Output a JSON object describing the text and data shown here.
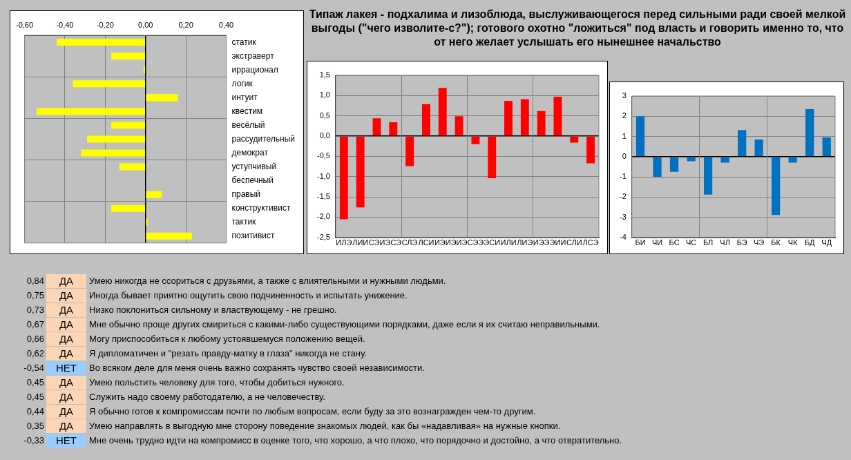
{
  "chart_data": [
    {
      "type": "bar",
      "orientation": "horizontal",
      "categories": [
        "статик",
        "экстраверт",
        "иррационал",
        "логик",
        "интуит",
        "квестим",
        "весёлый",
        "рассудительный",
        "демократ",
        "уступчивый",
        "беспечный",
        "правый",
        "конструктивист",
        "тактик",
        "позитивист"
      ],
      "values": [
        -0.44,
        -0.17,
        -0.01,
        -0.36,
        0.16,
        -0.54,
        -0.17,
        -0.29,
        -0.32,
        -0.13,
        0,
        0.08,
        -0.17,
        0.01,
        0.23
      ],
      "color": "#ffff00",
      "xlim": [
        -0.6,
        0.4
      ],
      "xticks": [
        {
          "value": -0.6,
          "label": "-0,60"
        },
        {
          "value": -0.4,
          "label": "-0,40"
        },
        {
          "value": -0.2,
          "label": "-0,20"
        },
        {
          "value": 0,
          "label": "0,00"
        },
        {
          "value": 0.2,
          "label": "0,20"
        },
        {
          "value": 0.4,
          "label": "0,40"
        }
      ],
      "grid": true,
      "legend": false
    },
    {
      "type": "bar",
      "title": "Типаж лакея - подхалима и лизоблюда, выслуживающегося перед сильными ради своей мелкой выгоды (\"чего изволите-с?\"); готового охотно \"ложиться\" под власть и говорить именно то, что от него желает услышать его нынешнее начальство",
      "categories": [
        "ИЛЭ",
        "ЛИИ",
        "СЭИ",
        "ЭСЭ",
        "СЛЭ",
        "ЛСИ",
        "ИЭИ",
        "ЭИЭ",
        "СЭЭ",
        "ЭСИ",
        "ИЛИ",
        "ЛИЭ",
        "ИЭЭ",
        "ЭИИ",
        "СЛИ",
        "ЛСЭ"
      ],
      "values": [
        -2.05,
        -1.76,
        0.44,
        0.34,
        -0.74,
        0.79,
        1.19,
        0.49,
        -0.2,
        -1.04,
        0.87,
        0.91,
        0.62,
        0.97,
        -0.16,
        -0.67
      ],
      "color": "#ff0000",
      "ylim": [
        -2.5,
        1.5
      ],
      "yticks": [
        {
          "value": -2.5,
          "label": "-2,5"
        },
        {
          "value": -2,
          "label": "-2,0"
        },
        {
          "value": -1.5,
          "label": "-1,5"
        },
        {
          "value": -1,
          "label": "-1,0"
        },
        {
          "value": -0.5,
          "label": "-0,5"
        },
        {
          "value": 0,
          "label": "0,0"
        },
        {
          "value": 0.5,
          "label": "0,5"
        },
        {
          "value": 1,
          "label": "1,0"
        },
        {
          "value": 1.5,
          "label": "1,5"
        }
      ],
      "grid": true,
      "legend": false
    },
    {
      "type": "bar",
      "categories": [
        "БИ",
        "ЧИ",
        "БС",
        "ЧС",
        "БЛ",
        "ЧЛ",
        "БЭ",
        "ЧЭ",
        "БК",
        "ЧК",
        "БД",
        "ЧД"
      ],
      "values": [
        2,
        -1,
        -0.75,
        -0.23,
        -1.88,
        -0.3,
        1.32,
        0.85,
        -2.89,
        -0.3,
        2.35,
        0.95
      ],
      "color": "#0070c0",
      "ylim": [
        -4,
        3
      ],
      "yticks": [
        -4,
        -3,
        -2,
        -1,
        0,
        1,
        2,
        3
      ],
      "grid": true,
      "legend": false
    },
    {
      "type": "other",
      "categories": [
        "Умею никогда не ссориться с друзьями, а также с влиятельными и нужными людьми.",
        "Иногда бывает приятно ощутить свою подчиненность и испытать унижение.",
        "Низко поклониться сильному и властвующему - не грешно.",
        "Мне обычно проще других смириться с какими-либо существующими порядками, даже если я их считаю неправильными.",
        "Могу приспособиться к любому устоявшемуся положению вещей.",
        "Я дипломатичен и \"резать правду-матку в глаза\" никогда не стану.",
        "Во всяком деле для меня очень важно сохранять чувство своей независимости.",
        "Умею польстить человеку для того, чтобы добиться нужного.",
        "Служить надо своему работодателю, а не человечеству.",
        "Я обычно готов к компромиссам почти по любым вопросам, если буду за это вознагражден чем-то другим.",
        "Умею направлять в выгодную мне сторону поведение знакомых людей, как бы «надавливая» на нужные кнопки.",
        "Мне очень трудно идти на компромисс в оценке того, что хорошо, а что плохо, что порядочно и достойно, а что отвратительно."
      ],
      "values": [
        0.84,
        0.75,
        0.73,
        0.67,
        0.66,
        0.62,
        -0.54,
        0.45,
        0.45,
        0.44,
        0.35,
        -0.33
      ],
      "value_labels": [
        "0,84",
        "0,75",
        "0,73",
        "0,67",
        "0,66",
        "0,62",
        "-0,54",
        "0,45",
        "0,45",
        "0,44",
        "0,35",
        "-0,33"
      ],
      "annotations": [
        "ДА",
        "ДА",
        "ДА",
        "ДА",
        "ДА",
        "ДА",
        "НЕТ",
        "ДА",
        "ДА",
        "ДА",
        "ДА",
        "НЕТ"
      ],
      "colors": [
        "#fcd5b4",
        "#fcd5b4",
        "#fcd5b4",
        "#fcd5b4",
        "#fcd5b4",
        "#fcd5b4",
        "#99ccff",
        "#fcd5b4",
        "#fcd5b4",
        "#fcd5b4",
        "#fcd5b4",
        "#99ccff"
      ]
    }
  ]
}
